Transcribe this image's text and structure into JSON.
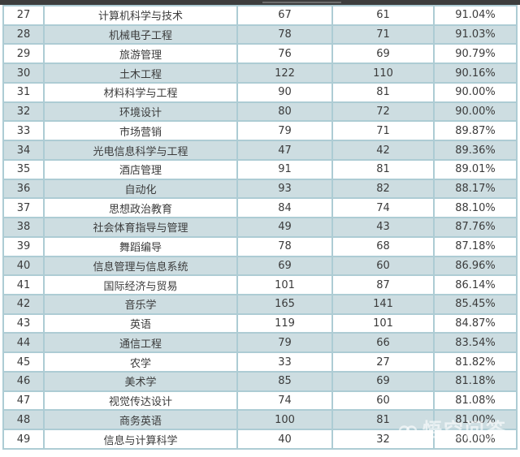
{
  "colors": {
    "top_bar": "#3d3d3d",
    "top_bar_accent": "#6e6e6e",
    "row_white": "#ffffff",
    "row_shaded": "#cddde1",
    "border": "#adccd4",
    "text": "#3b3b3b",
    "watermark": "rgba(255,255,255,0.62)"
  },
  "chart_data": {
    "type": "table",
    "rows": [
      [
        "27",
        "计算机科学与技术",
        "67",
        "61",
        "91.04%"
      ],
      [
        "28",
        "机械电子工程",
        "78",
        "71",
        "91.03%"
      ],
      [
        "29",
        "旅游管理",
        "76",
        "69",
        "90.79%"
      ],
      [
        "30",
        "土木工程",
        "122",
        "110",
        "90.16%"
      ],
      [
        "31",
        "材料科学与工程",
        "90",
        "81",
        "90.00%"
      ],
      [
        "32",
        "环境设计",
        "80",
        "72",
        "90.00%"
      ],
      [
        "33",
        "市场营销",
        "79",
        "71",
        "89.87%"
      ],
      [
        "34",
        "光电信息科学与工程",
        "47",
        "42",
        "89.36%"
      ],
      [
        "35",
        "酒店管理",
        "91",
        "81",
        "89.01%"
      ],
      [
        "36",
        "自动化",
        "93",
        "82",
        "88.17%"
      ],
      [
        "37",
        "思想政治教育",
        "84",
        "74",
        "88.10%"
      ],
      [
        "38",
        "社会体育指导与管理",
        "49",
        "43",
        "87.76%"
      ],
      [
        "39",
        "舞蹈编导",
        "78",
        "68",
        "87.18%"
      ],
      [
        "40",
        "信息管理与信息系统",
        "69",
        "60",
        "86.96%"
      ],
      [
        "41",
        "国际经济与贸易",
        "101",
        "87",
        "86.14%"
      ],
      [
        "42",
        "音乐学",
        "165",
        "141",
        "85.45%"
      ],
      [
        "43",
        "英语",
        "119",
        "101",
        "84.87%"
      ],
      [
        "44",
        "通信工程",
        "79",
        "66",
        "83.54%"
      ],
      [
        "45",
        "农学",
        "33",
        "27",
        "81.82%"
      ],
      [
        "46",
        "美术学",
        "85",
        "69",
        "81.18%"
      ],
      [
        "47",
        "视觉传达设计",
        "74",
        "60",
        "81.08%"
      ],
      [
        "48",
        "商务英语",
        "100",
        "81",
        "81.00%"
      ],
      [
        "49",
        "信息与计算科学",
        "40",
        "32",
        "80.00%"
      ]
    ]
  },
  "watermark": {
    "text": "悟空问答"
  }
}
